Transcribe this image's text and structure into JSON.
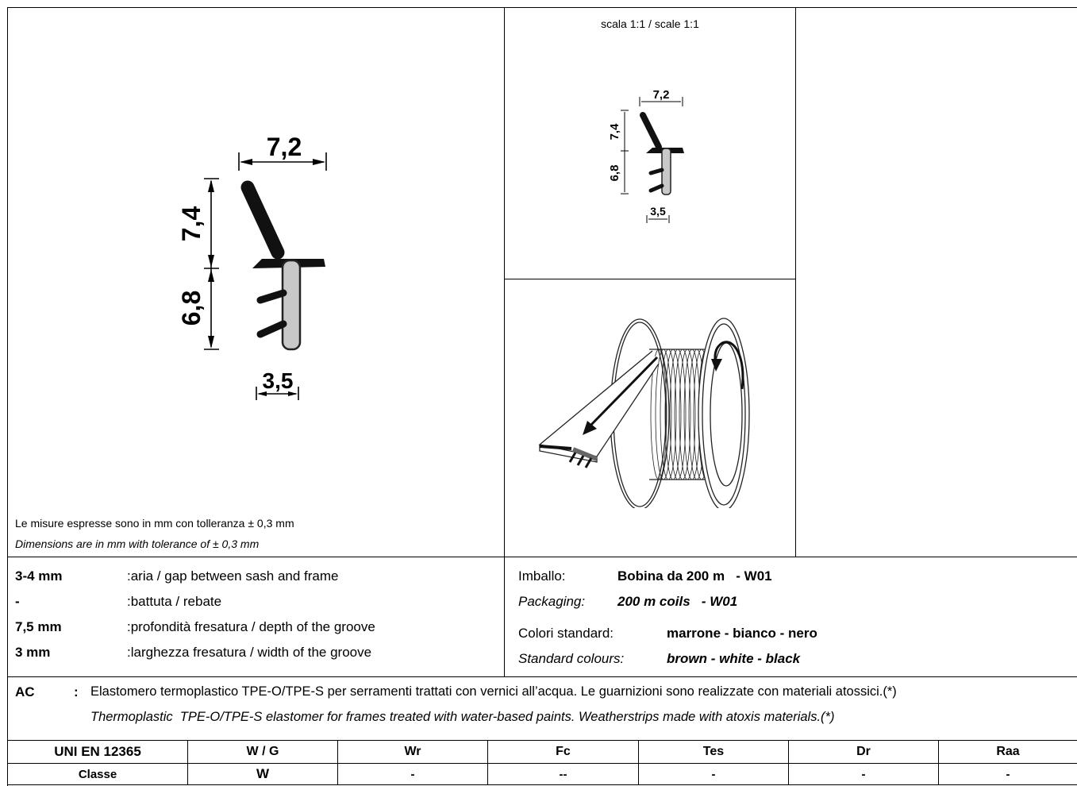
{
  "scale_label": "scala 1:1 / scale 1:1",
  "large_profile": {
    "width": "7,2",
    "upper_height": "7,4",
    "lower_height": "6,8",
    "base_width": "3,5"
  },
  "small_profile": {
    "width": "7,2",
    "upper_height": "7,4",
    "lower_height": "6,8",
    "base_width": "3,5"
  },
  "tolerance_note": {
    "it": "Le misure espresse sono in mm con tolleranza ± 0,3 mm",
    "en": "Dimensions are in mm with tolerance of ± 0,3 mm"
  },
  "specs": [
    {
      "value": "3-4 mm",
      "desc": ":aria / gap between sash and frame"
    },
    {
      "value": "-",
      "desc": ":battuta / rebate"
    },
    {
      "value": "7,5 mm",
      "desc": ":profondità fresatura / depth of the groove"
    },
    {
      "value": "3 mm",
      "desc": ":larghezza fresatura / width of the groove"
    }
  ],
  "packaging": {
    "label_it": "Imballo:",
    "value_it": "Bobina da 200 m   - W01",
    "label_en": "Packaging:",
    "value_en": "200 m coils   - W01"
  },
  "colors": {
    "label_it": "Colori standard:",
    "value_it": "marrone - bianco - nero",
    "label_en": "Standard colours:",
    "value_en": "brown - white - black"
  },
  "material": {
    "code": "AC",
    "colon": ":",
    "it": "Elastomero termoplastico TPE-O/TPE-S per serramenti trattati con vernici all’acqua. Le guarnizioni sono realizzate con materiali atossici.(*)",
    "en": "Thermoplastic  TPE-O/TPE-S elastomer for frames treated with water-based paints. Weatherstrips made with atoxis materials.(*)"
  },
  "classification": {
    "headers": [
      "UNI EN 12365",
      "W / G",
      "Wr",
      "Fc",
      "Tes",
      "Dr",
      "Raa"
    ],
    "row": [
      "Classe",
      "W",
      "-",
      "--",
      "-",
      "-",
      "-"
    ]
  }
}
